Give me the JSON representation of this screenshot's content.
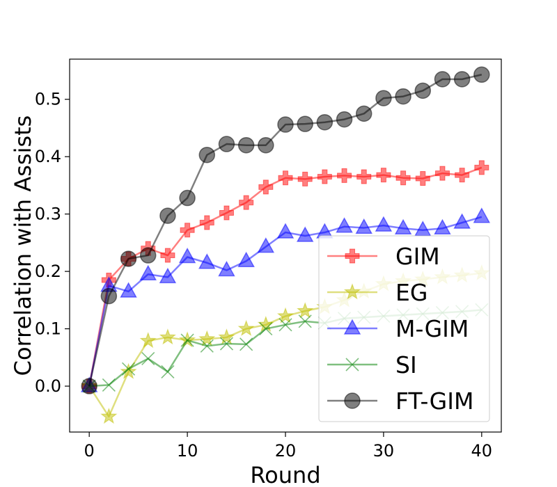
{
  "chart_data": {
    "type": "line",
    "xlabel": "Round",
    "ylabel": "Correlation with Assists",
    "xlim": [
      -2,
      42
    ],
    "ylim": [
      -0.08,
      0.57
    ],
    "xticks": [
      0,
      10,
      20,
      30,
      40
    ],
    "yticks": [
      0.0,
      0.1,
      0.2,
      0.3,
      0.4,
      0.5
    ],
    "xtick_labels": [
      "0",
      "10",
      "20",
      "30",
      "40"
    ],
    "ytick_labels": [
      "0.0",
      "0.1",
      "0.2",
      "0.3",
      "0.4",
      "0.5"
    ],
    "grid": false,
    "legend_position": "bottom-right",
    "x": [
      0,
      2,
      4,
      6,
      8,
      10,
      12,
      14,
      16,
      18,
      20,
      22,
      24,
      26,
      28,
      30,
      32,
      34,
      36,
      38,
      40
    ],
    "series": [
      {
        "name": "GIM",
        "color": "#ff0000",
        "marker": "plus",
        "values": [
          0.0,
          0.185,
          0.222,
          0.24,
          0.228,
          0.272,
          0.285,
          0.302,
          0.32,
          0.347,
          0.363,
          0.361,
          0.365,
          0.367,
          0.365,
          0.368,
          0.363,
          0.362,
          0.371,
          0.368,
          0.381
        ]
      },
      {
        "name": "EG",
        "color": "#bfbf00",
        "marker": "star",
        "values": [
          0.0,
          -0.053,
          0.025,
          0.079,
          0.085,
          0.08,
          0.082,
          0.085,
          0.1,
          0.107,
          0.122,
          0.131,
          0.138,
          0.15,
          0.165,
          0.178,
          0.183,
          0.186,
          0.19,
          0.193,
          0.197
        ]
      },
      {
        "name": "M-GIM",
        "color": "#0000ff",
        "marker": "triangle",
        "values": [
          0.0,
          0.175,
          0.165,
          0.195,
          0.19,
          0.225,
          0.215,
          0.202,
          0.218,
          0.243,
          0.268,
          0.262,
          0.268,
          0.278,
          0.276,
          0.28,
          0.275,
          0.272,
          0.275,
          0.285,
          0.295
        ]
      },
      {
        "name": "SI",
        "color": "#008000",
        "marker": "x",
        "values": [
          0.0,
          0.002,
          0.03,
          0.048,
          0.025,
          0.08,
          0.07,
          0.074,
          0.073,
          0.1,
          0.107,
          0.113,
          0.11,
          0.118,
          0.12,
          0.122,
          0.124,
          0.126,
          0.128,
          0.13,
          0.133
        ]
      },
      {
        "name": "FT-GIM",
        "color": "#000000",
        "marker": "circle",
        "values": [
          0.0,
          0.157,
          0.222,
          0.228,
          0.297,
          0.328,
          0.403,
          0.422,
          0.42,
          0.42,
          0.456,
          0.457,
          0.46,
          0.465,
          0.475,
          0.502,
          0.505,
          0.515,
          0.535,
          0.535,
          0.543
        ]
      }
    ]
  }
}
